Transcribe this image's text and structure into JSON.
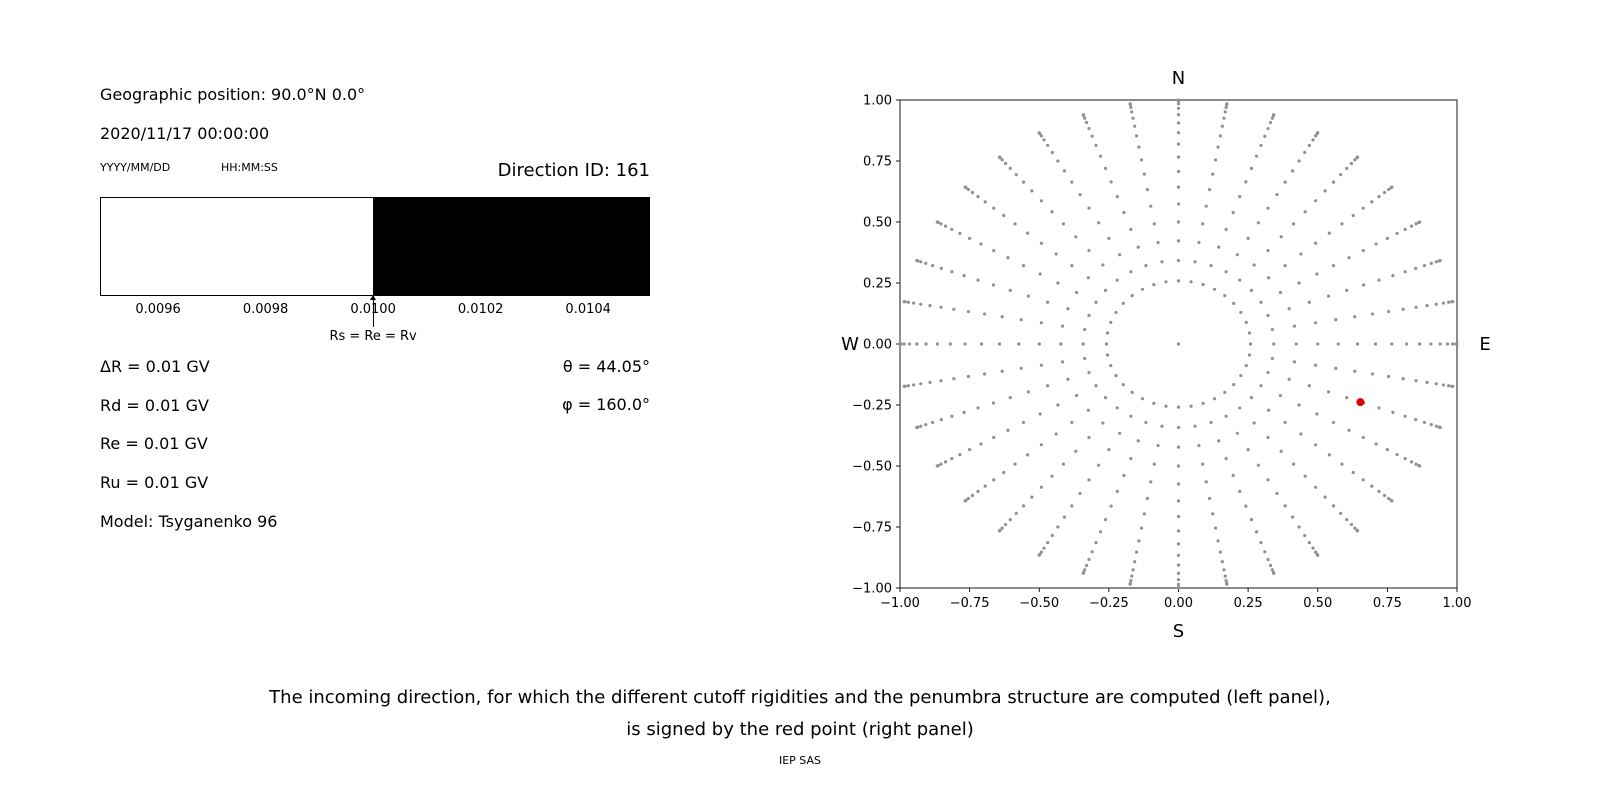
{
  "colors": {
    "text": "#000000",
    "grid_dot": "#909090",
    "red_point": "#e00000",
    "bar_fill_left": "#ffffff",
    "bar_fill_right": "#000000",
    "axis": "#000000"
  },
  "left_panel": {
    "geo_position": "Geographic position: 90.0°N 0.0°",
    "datetime": "2020/11/17 00:00:00",
    "date_format": "YYYY/MM/DD",
    "time_format": "HH:MM:SS",
    "direction_id": "Direction ID: 161",
    "params": [
      "ΔR = 0.01 GV",
      "Rd = 0.01 GV",
      "Re = 0.01 GV",
      "Ru = 0.01 GV",
      "Model: Tsyganenko 96"
    ],
    "theta": "θ = 44.05°",
    "phi": "φ = 160.0°"
  },
  "caption": {
    "line1": "The incoming direction, for which the different cutoff rigidities and the penumbra structure are computed (left panel),",
    "line2": "is signed by the red point (right panel)",
    "credit": "IEP SAS"
  },
  "chart_data": [
    {
      "type": "bar",
      "description": "Penumbra structure strip: white = below cutoff transition, black = above; sharp transition at 0.0100 GV",
      "xlim": [
        0.009492,
        0.010515
      ],
      "x_ticks": [
        0.0096,
        0.0098,
        0.01,
        0.0102,
        0.0104
      ],
      "x_tick_labels": [
        "0.0096",
        "0.0098",
        "0.0100",
        "0.0102",
        "0.0104"
      ],
      "regions": [
        {
          "from": 0.009492,
          "to": 0.01,
          "color": "#ffffff"
        },
        {
          "from": 0.01,
          "to": 0.010515,
          "color": "#000000"
        }
      ],
      "marker": {
        "value": 0.01,
        "label": "Rs = Re = Rv"
      }
    },
    {
      "type": "scatter",
      "description": "Grid of incoming directions projected on unit circle (gray dots); red point marks selected direction",
      "xlim": [
        -1,
        1
      ],
      "ylim": [
        -1,
        1
      ],
      "x_ticks": [
        -1,
        -0.75,
        -0.5,
        -0.25,
        0,
        0.25,
        0.5,
        0.75,
        1
      ],
      "x_tick_labels": [
        "−1.00",
        "−0.75",
        "−0.50",
        "−0.25",
        "0.00",
        "0.25",
        "0.50",
        "0.75",
        "1.00"
      ],
      "y_ticks": [
        1,
        0.75,
        0.5,
        0.25,
        0,
        -0.25,
        -0.5,
        -0.75,
        -1
      ],
      "y_tick_labels": [
        "1.00",
        "0.75",
        "0.50",
        "0.25",
        "0.00",
        "−0.25",
        "−0.50",
        "−0.75",
        "−1.00"
      ],
      "direction_labels": {
        "top": "N",
        "right": "E",
        "bottom": "S",
        "left": "W"
      },
      "grid_points": {
        "azimuth_start_deg": 0,
        "azimuth_step_deg": 10,
        "azimuth_count": 36,
        "zenith_start_deg": 15,
        "zenith_step_deg": 5,
        "zenith_end_deg": 90,
        "radius_mapping": "r = sin(zenith)",
        "include_center_point": true
      },
      "red_point": {
        "x": 0.653,
        "y": -0.238,
        "theta_deg": 44.05,
        "phi_deg": 160.0
      }
    }
  ]
}
